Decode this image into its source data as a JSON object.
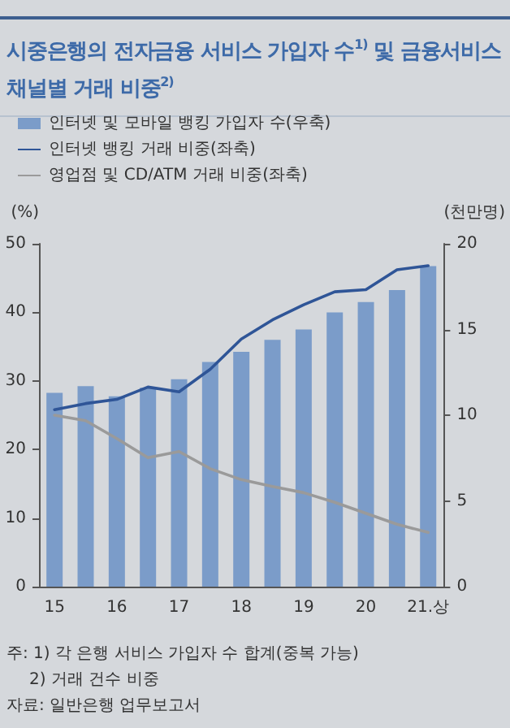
{
  "chart_data": {
    "type": "bar",
    "title": "시중은행의 전자금융 서비스 가입자 수$^{1)}$ 및 금융서비스 채널별 거래 비중$^{2)}$",
    "categories": [
      "15",
      null,
      "16",
      null,
      "17",
      null,
      "18",
      null,
      "19",
      null,
      "20",
      null,
      "21.상"
    ],
    "series": [
      {
        "name": "인터넷 및 모바일 뱅킹 가입자 수(우축)",
        "axis": "y2",
        "color": "#7b9cc9",
        "values": [
          11.3,
          11.7,
          11.1,
          11.6,
          12.1,
          13.1,
          13.7,
          14.4,
          15.0,
          16.0,
          16.6,
          17.3,
          18.7
        ]
      },
      {
        "name": "인터넷 뱅킹 거래 비중(좌축)",
        "type": "line",
        "color": "#2f5597",
        "values": [
          25.8,
          26.7,
          27.3,
          29.1,
          28.4,
          31.7,
          36.1,
          38.9,
          41.1,
          43.0,
          43.3,
          46.2,
          46.8
        ]
      },
      {
        "name": "영업점 및 CD/ATM 거래 비중(좌축)",
        "type": "line",
        "color": "#9a9a9a",
        "values": [
          25.0,
          24.2,
          21.6,
          18.8,
          19.7,
          17.2,
          15.6,
          14.6,
          13.7,
          12.3,
          10.7,
          9.1,
          7.9
        ]
      }
    ],
    "ylabel": "(%)",
    "y2label": "(천만명)",
    "ylim": [
      0,
      50
    ],
    "yticks": [
      0,
      10,
      20,
      30,
      40,
      50
    ],
    "y2lim": [
      0,
      20
    ],
    "y2ticks": [
      0,
      5,
      10,
      15,
      20
    ],
    "legend": "top left",
    "grid": false,
    "marker": "none",
    "line_style": "solid",
    "annotations": [
      "주: 1) 각 은행 서비스 가입자 수 합계(중복 가능)",
      "2) 거래 건수 비중",
      "자료: 일반은행 업무보고서"
    ]
  }
}
